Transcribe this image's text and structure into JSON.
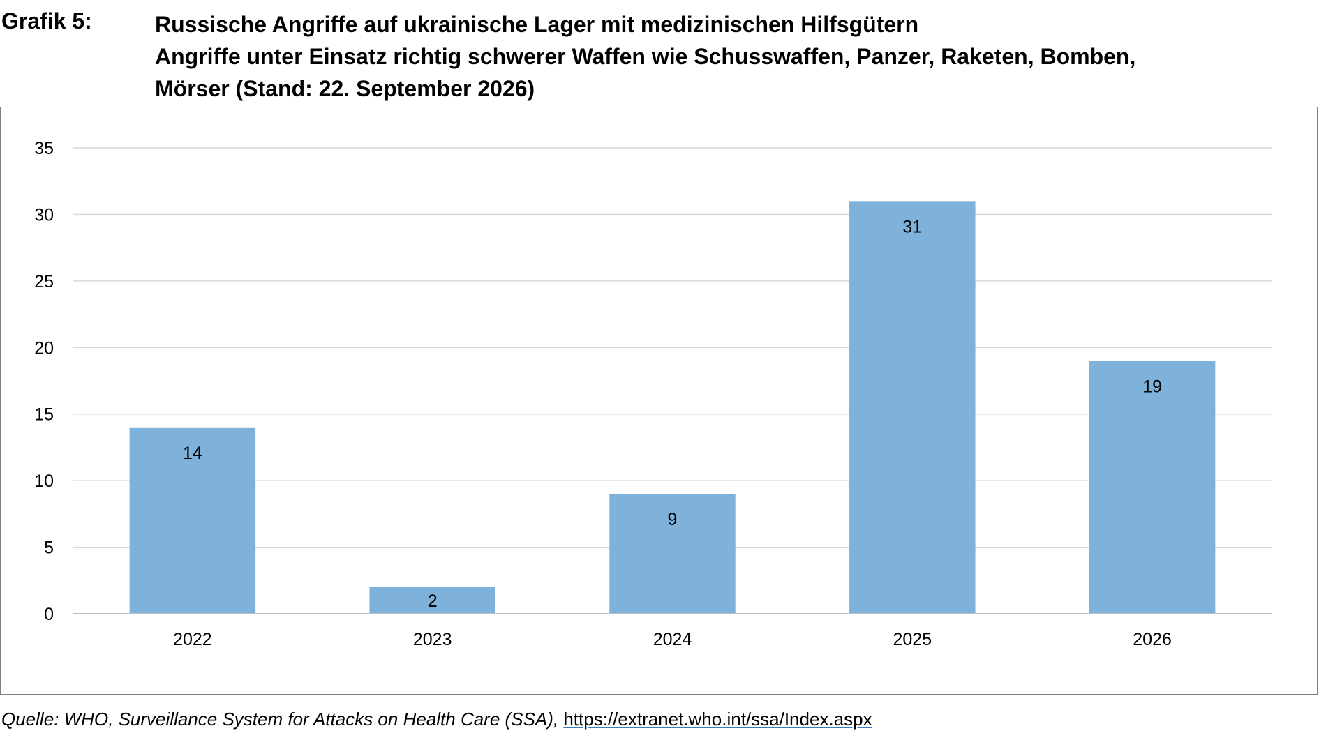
{
  "header": {
    "label": "Grafik 5:",
    "title_line1": "Russische Angriffe auf ukrainische Lager mit medizinischen Hilfsgütern",
    "title_line2": "Angriffe unter Einsatz richtig schwerer Waffen wie Schusswaffen, Panzer, Raketen, Bomben,",
    "title_line3": "Mörser (Stand: 22. September 2026)"
  },
  "source": {
    "text": "Quelle: WHO, Surveillance System for Attacks on Health Care (SSA), ",
    "link": "https://extranet.who.int/ssa/Index.aspx"
  },
  "colors": {
    "bar": "#7fb2da",
    "grid": "#d9d9d9",
    "axis": "#bfbfbf"
  },
  "chart_data": {
    "type": "bar",
    "categories": [
      "2022",
      "2023",
      "2024",
      "2025",
      "2026"
    ],
    "values": [
      14,
      2,
      9,
      31,
      19
    ],
    "data_labels": [
      "14",
      "2",
      "9",
      "31",
      "19"
    ],
    "ylim": [
      0,
      35
    ],
    "yticks": [
      0,
      5,
      10,
      15,
      20,
      25,
      30,
      35
    ],
    "grid": true,
    "legend": "none"
  }
}
